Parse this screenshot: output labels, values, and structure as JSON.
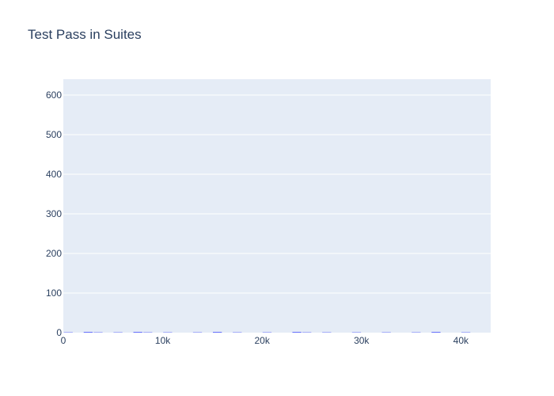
{
  "chart_data": {
    "type": "bar",
    "title": "Test Pass in Suites",
    "xlabel": "",
    "ylabel": "",
    "xlim": [
      0,
      43000
    ],
    "ylim": [
      0,
      640
    ],
    "x_ticks": [
      0,
      10000,
      20000,
      30000,
      40000
    ],
    "x_tick_labels": [
      "0",
      "10k",
      "20k",
      "30k",
      "40k"
    ],
    "y_ticks": [
      0,
      100,
      200,
      300,
      400,
      500,
      600
    ],
    "y_tick_labels": [
      "0",
      "100",
      "200",
      "300",
      "400",
      "500",
      "600"
    ],
    "grid": true,
    "legend": "none",
    "colors": {
      "plot_background": "#e5ecf6",
      "grid": "#ffffff",
      "text": "#2a3f5f",
      "bar": "#636efa"
    },
    "series": [
      {
        "x": [
          0,
          1000,
          2000,
          3000,
          4000,
          5000,
          6000,
          7000,
          8000,
          9000,
          10000,
          11000,
          12000,
          13000,
          14000,
          15000,
          16000,
          17000,
          18000,
          19000,
          20000,
          21000,
          22000,
          23000,
          24000,
          25000,
          26000,
          27000,
          28000,
          29000,
          30000,
          31000,
          32000,
          33000,
          34000,
          35000,
          36000,
          37000,
          38000,
          39000,
          40000,
          41000,
          42000
        ],
        "values": [
          1,
          0,
          2,
          1,
          0,
          1,
          0,
          2,
          1,
          0,
          1,
          0,
          0,
          1,
          0,
          2,
          0,
          1,
          0,
          0,
          1,
          0,
          0,
          2,
          1,
          0,
          1,
          0,
          0,
          1,
          0,
          0,
          1,
          0,
          0,
          1,
          0,
          2,
          0,
          0,
          1,
          0,
          0
        ]
      }
    ]
  }
}
